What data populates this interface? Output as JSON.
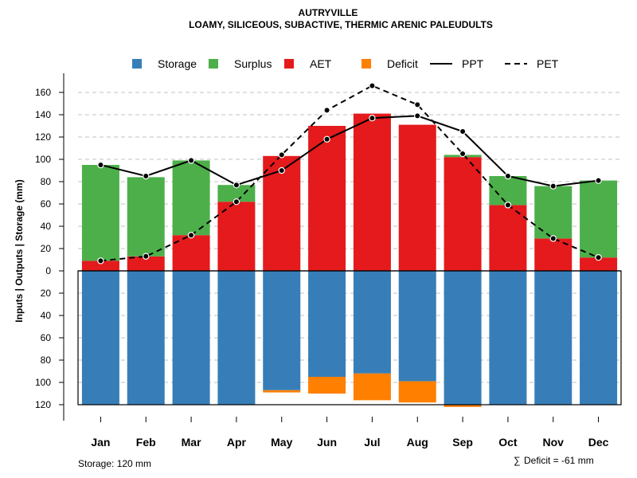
{
  "chart_data": {
    "type": "bar",
    "title": "AUTRYVILLE",
    "subtitle": "LOAMY, SILICEOUS, SUBACTIVE, THERMIC ARENIC PALEUDULTS",
    "ylabel_parts": [
      "Inputs",
      "Outputs",
      "Storage",
      "(mm)"
    ],
    "ylabel_separator": " | ",
    "categories": [
      "Jan",
      "Feb",
      "Mar",
      "Apr",
      "May",
      "Jun",
      "Jul",
      "Aug",
      "Sep",
      "Oct",
      "Nov",
      "Dec"
    ],
    "upper_ylim": [
      0,
      170
    ],
    "lower_ylim": [
      0,
      120
    ],
    "yticks_upper": [
      "0",
      "20",
      "40",
      "60",
      "80",
      "100",
      "120",
      "140",
      "160"
    ],
    "yticks_lower": [
      "20",
      "40",
      "60",
      "80",
      "100",
      "120"
    ],
    "series": [
      {
        "name": "Storage",
        "color": "#377EB8",
        "values": [
          120,
          120,
          120,
          120,
          107,
          95,
          92,
          99,
          120,
          120,
          120,
          120
        ]
      },
      {
        "name": "Surplus",
        "color": "#4DAF4A",
        "values": [
          86,
          71,
          67,
          15,
          0,
          0,
          0,
          0,
          2,
          26,
          47,
          69
        ]
      },
      {
        "name": "AET",
        "color": "#E41A1C",
        "values": [
          9,
          13,
          32,
          62,
          103,
          130,
          141,
          131,
          102,
          59,
          29,
          12
        ]
      },
      {
        "name": "Deficit",
        "color": "#FF7F00",
        "values": [
          0,
          0,
          0,
          0,
          2,
          15,
          24,
          19,
          2,
          0,
          0,
          0
        ]
      },
      {
        "name": "PPT",
        "color": "#000000",
        "style": "solid",
        "values": [
          95,
          85,
          99,
          77,
          90,
          118,
          137,
          139,
          125,
          85,
          76,
          81
        ]
      },
      {
        "name": "PET",
        "color": "#000000",
        "style": "dashed",
        "values": [
          9,
          13,
          32,
          62,
          104,
          144,
          166,
          149,
          105,
          59,
          29,
          12
        ]
      }
    ],
    "grid": true,
    "legend_position": "top",
    "notes": {
      "storage": "Storage: 120 mm",
      "deficit_symbol": "∑",
      "deficit": "Deficit = -61 mm"
    }
  }
}
